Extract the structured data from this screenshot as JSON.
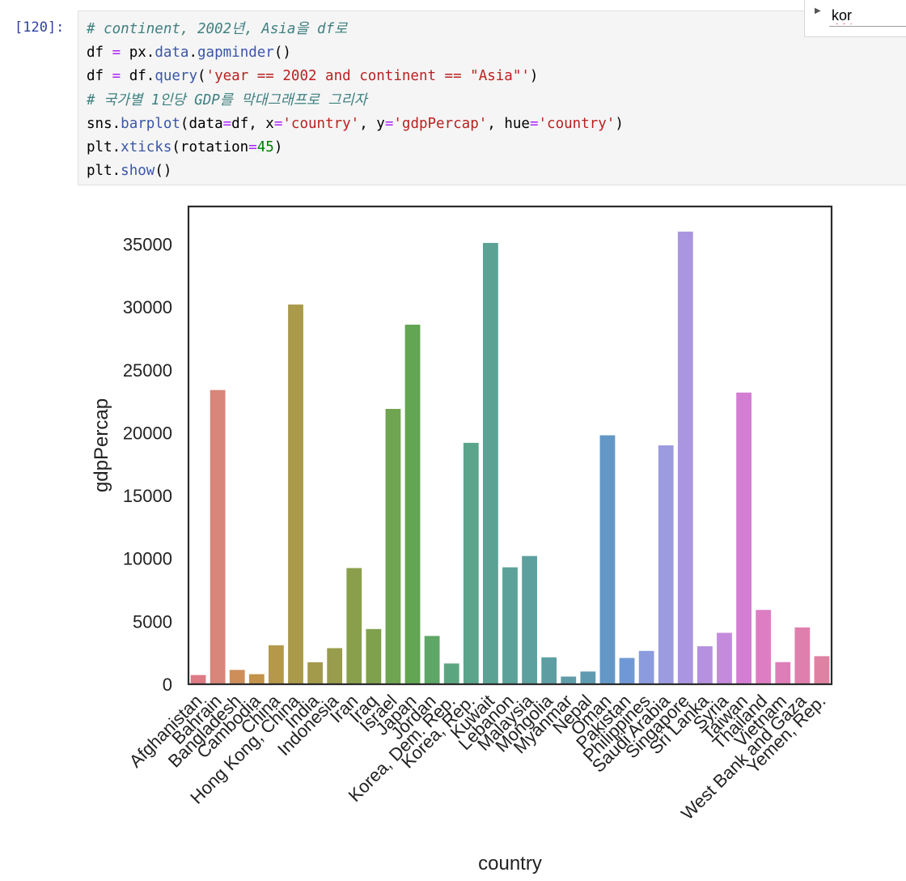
{
  "cell": {
    "prompt": "[120]:",
    "code": [
      [
        [
          "cm",
          "# continent, 2002년, Asia을 df로"
        ]
      ],
      [
        [
          "",
          "df "
        ],
        [
          "op",
          "="
        ],
        [
          "",
          " px"
        ],
        [
          "",
          "."
        ],
        [
          "pr",
          "data"
        ],
        [
          "",
          "."
        ],
        [
          "pr",
          "gapminder"
        ],
        [
          "",
          "()"
        ]
      ],
      [
        [
          "",
          "df "
        ],
        [
          "op",
          "="
        ],
        [
          "",
          " df"
        ],
        [
          "",
          "."
        ],
        [
          "pr",
          "query"
        ],
        [
          "",
          "("
        ],
        [
          "st",
          "'year == 2002 and continent == \"Asia\"'"
        ],
        [
          "",
          ")"
        ]
      ],
      [
        [
          "cm",
          "# 국가별 1인당 GDP를 막대그래프로 그리자"
        ]
      ],
      [
        [
          "",
          "sns"
        ],
        [
          "",
          "."
        ],
        [
          "pr",
          "barplot"
        ],
        [
          "",
          "(data"
        ],
        [
          "op",
          "="
        ],
        [
          "",
          "df, x"
        ],
        [
          "op",
          "="
        ],
        [
          "st",
          "'country'"
        ],
        [
          "",
          ", y"
        ],
        [
          "op",
          "="
        ],
        [
          "st",
          "'gdpPercap'"
        ],
        [
          "",
          ", hue"
        ],
        [
          "op",
          "="
        ],
        [
          "st",
          "'country'"
        ],
        [
          "",
          ")"
        ]
      ],
      [
        [
          "",
          "plt"
        ],
        [
          "",
          "."
        ],
        [
          "pr",
          "xticks"
        ],
        [
          "",
          "(rotation"
        ],
        [
          "op",
          "="
        ],
        [
          "nu",
          "45"
        ],
        [
          "",
          ")"
        ]
      ],
      [
        [
          "",
          "plt"
        ],
        [
          "",
          "."
        ],
        [
          "pr",
          "show"
        ],
        [
          "",
          "()"
        ]
      ]
    ]
  },
  "find": {
    "value": "kor"
  },
  "chart_data": {
    "type": "bar",
    "xlabel": "country",
    "ylabel": "gdpPercap",
    "ylim": [
      0,
      38000
    ],
    "yticks": [
      0,
      5000,
      10000,
      15000,
      20000,
      25000,
      30000,
      35000
    ],
    "grid": false,
    "categories": [
      "Afghanistan",
      "Bahrain",
      "Bangladesh",
      "Cambodia",
      "China",
      "Hong Kong, China",
      "India",
      "Indonesia",
      "Iran",
      "Iraq",
      "Israel",
      "Japan",
      "Jordan",
      "Korea, Dem. Rep.",
      "Korea, Rep.",
      "Kuwait",
      "Lebanon",
      "Malaysia",
      "Mongolia",
      "Myanmar",
      "Nepal",
      "Oman",
      "Pakistan",
      "Philippines",
      "Saudi Arabia",
      "Singapore",
      "Sri Lanka",
      "Syria",
      "Taiwan",
      "Thailand",
      "Vietnam",
      "West Bank and Gaza",
      "Yemen, Rep."
    ],
    "values": [
      730,
      23400,
      1140,
      800,
      3100,
      30200,
      1750,
      2870,
      9240,
      4390,
      21900,
      28600,
      3840,
      1650,
      19200,
      35100,
      9300,
      10200,
      2140,
      610,
      1010,
      19800,
      2090,
      2650,
      19000,
      36000,
      3020,
      4090,
      23200,
      5910,
      1760,
      4520,
      2230
    ],
    "colors": [
      "#dd7a83",
      "#d8857a",
      "#cd8e5a",
      "#c3934a",
      "#b5984a",
      "#aa9a4c",
      "#a39b4c",
      "#989c4c",
      "#8a9f4c",
      "#7fa04c",
      "#6fa450",
      "#62a552",
      "#5ea766",
      "#5ba680",
      "#5aa48c",
      "#5ba294",
      "#5ca29a",
      "#5da09e",
      "#5e9ea2",
      "#5f9ca8",
      "#5f9ab0",
      "#6397c6",
      "#7098d6",
      "#8c9bde",
      "#9d9be0",
      "#aa96e0",
      "#b591df",
      "#c48bdc",
      "#d47ed3",
      "#dd7ec3",
      "#de7eb8",
      "#df7fad",
      "#df81a2"
    ],
    "tick_label_overrides": {
      "Korea, Dem. Rep.": "Korea, Dem. Rep."
    }
  }
}
